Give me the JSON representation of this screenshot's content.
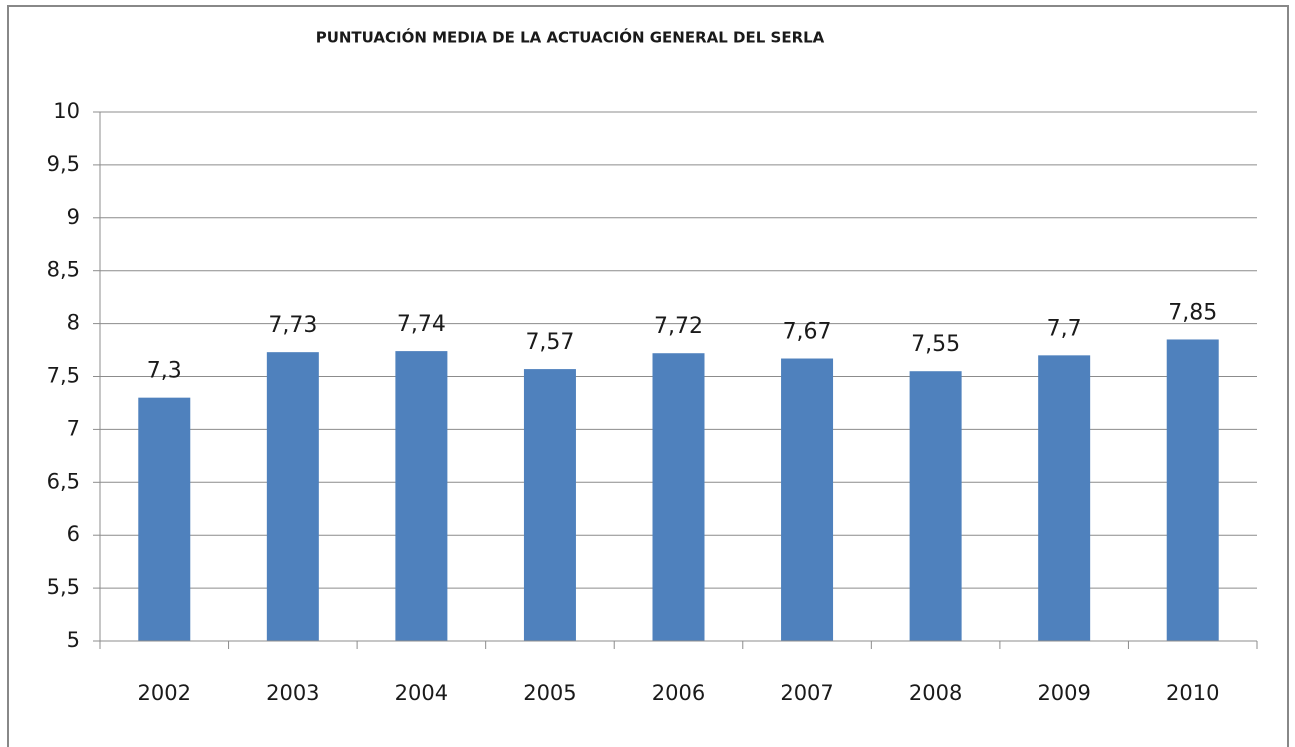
{
  "chart_data": {
    "type": "bar",
    "title": "PUNTUACIÓN MEDIA DE LA ACTUACIÓN GENERAL DEL SERLA",
    "categories": [
      "2002",
      "2003",
      "2004",
      "2005",
      "2006",
      "2007",
      "2008",
      "2009",
      "2010"
    ],
    "values": [
      7.3,
      7.73,
      7.74,
      7.57,
      7.72,
      7.67,
      7.55,
      7.7,
      7.85
    ],
    "value_labels": [
      "7,3",
      "7,73",
      "7,74",
      "7,57",
      "7,72",
      "7,67",
      "7,55",
      "7,7",
      "7,85"
    ],
    "color": "#4f81bd",
    "ylim": [
      5,
      10
    ],
    "yticks": [
      5,
      {
        "value": 5.5,
        "label": "5,5"
      },
      6,
      {
        "value": 6.5,
        "label": "6,5"
      },
      7,
      {
        "value": 7.5,
        "label": "7,5"
      },
      8,
      {
        "value": 8.5,
        "label": "8,5"
      },
      9,
      {
        "value": 9.5,
        "label": "9,5"
      },
      10
    ],
    "grid": true
  }
}
